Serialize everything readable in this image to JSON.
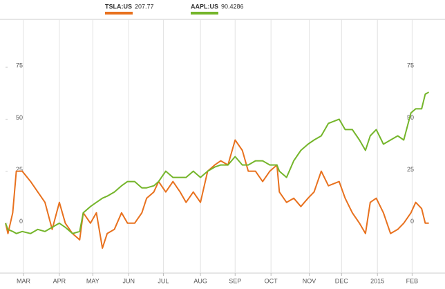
{
  "chart_data": {
    "type": "line",
    "x": [
      0,
      2,
      6,
      9,
      14,
      21,
      27,
      33,
      39,
      45,
      50,
      56,
      62,
      65,
      71,
      76,
      81,
      85,
      91,
      97,
      102,
      108,
      114,
      118,
      124,
      128,
      134,
      140,
      146,
      151,
      157,
      163,
      169,
      175,
      180,
      186,
      192,
      198,
      203,
      209,
      215,
      221,
      227,
      229,
      235,
      241,
      247,
      253,
      258,
      264,
      270,
      279,
      284,
      290,
      296,
      301,
      305,
      310,
      316,
      322,
      328,
      333,
      339,
      343,
      348,
      351,
      354
    ],
    "series": [
      {
        "name": "TSLA:US",
        "last_price": 207.77,
        "color": "#e8711e",
        "values": [
          0,
          -5,
          5,
          25,
          25,
          20,
          15,
          10,
          -3,
          10,
          0,
          -5,
          -8,
          5,
          0,
          5,
          -12,
          -5,
          -3,
          5,
          0,
          0,
          5,
          12,
          15,
          20,
          15,
          20,
          15,
          10,
          15,
          10,
          25,
          28,
          30,
          28,
          40,
          35,
          25,
          25,
          20,
          25,
          28,
          15,
          10,
          12,
          8,
          12,
          15,
          25,
          18,
          20,
          12,
          5,
          0,
          -5,
          10,
          12,
          5,
          -5,
          -3,
          0,
          5,
          10,
          7,
          0,
          0
        ]
      },
      {
        "name": "AAPL:US",
        "last_price": 90.4286,
        "color": "#74b52a",
        "values": [
          0,
          -3,
          -4,
          -5,
          -4,
          -5,
          -3,
          -4,
          -2,
          0,
          -2,
          -5,
          -4,
          5,
          8,
          10,
          12,
          13,
          15,
          18,
          20,
          20,
          17,
          17,
          18,
          20,
          25,
          22,
          22,
          22,
          25,
          22,
          25,
          27,
          28,
          28,
          32,
          28,
          28,
          30,
          30,
          28,
          28,
          25,
          22,
          30,
          35,
          38,
          40,
          42,
          48,
          50,
          45,
          45,
          40,
          35,
          42,
          45,
          38,
          40,
          42,
          40,
          53,
          55,
          55,
          62,
          63
        ]
      }
    ],
    "xlim": [
      0,
      360
    ],
    "xticks": [
      {
        "value": 15,
        "label": "MAR"
      },
      {
        "value": 45,
        "label": "APR"
      },
      {
        "value": 73,
        "label": "MAY"
      },
      {
        "value": 103,
        "label": "JUN"
      },
      {
        "value": 132,
        "label": "JUL"
      },
      {
        "value": 163,
        "label": "AUG"
      },
      {
        "value": 192,
        "label": "SEP"
      },
      {
        "value": 222,
        "label": "OCT"
      },
      {
        "value": 254,
        "label": "NOV"
      },
      {
        "value": 281,
        "label": "DEC"
      },
      {
        "value": 311,
        "label": "2015"
      },
      {
        "value": 340,
        "label": "FEB"
      }
    ],
    "ylim": [
      -24,
      98
    ],
    "yticks": [
      0,
      25,
      50,
      75
    ],
    "grid": "x"
  }
}
